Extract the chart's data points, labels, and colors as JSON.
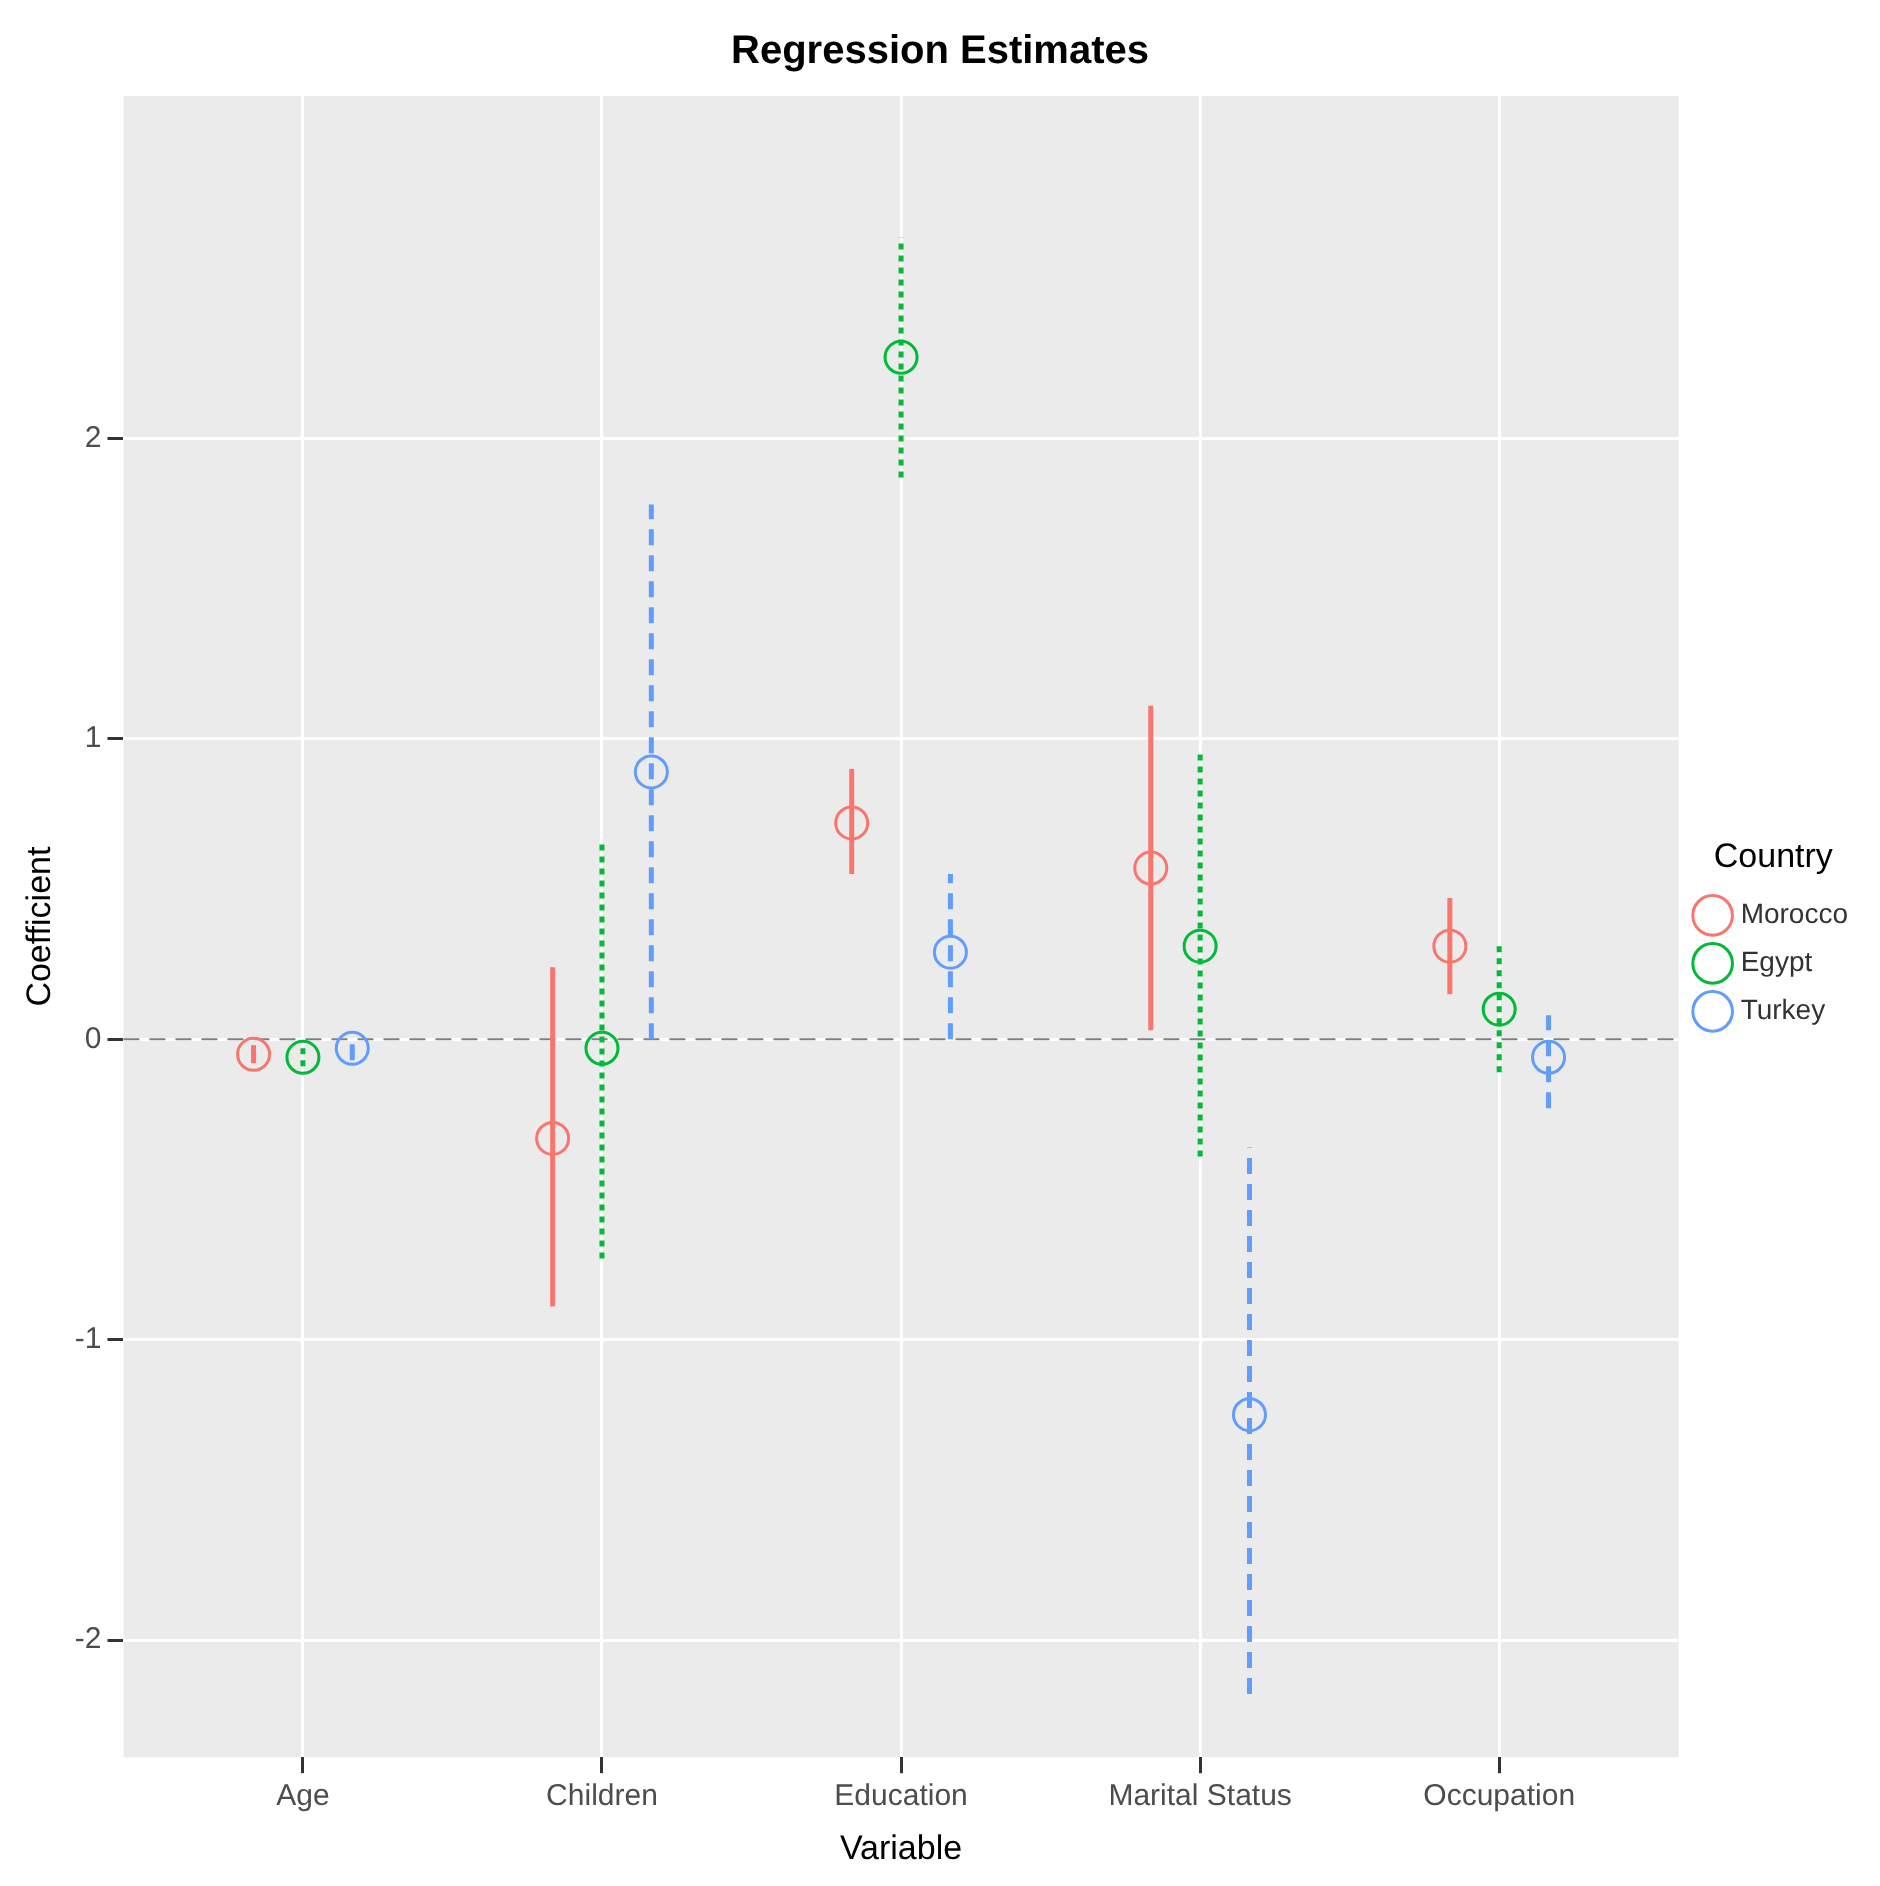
{
  "chart_data": {
    "type": "scatter",
    "title": "Regression Estimates",
    "xlabel": "Variable",
    "ylabel": "Coefficient",
    "legend_title": "Country",
    "categories": [
      "Age",
      "Children",
      "Education",
      "Marital Status",
      "Occupation"
    ],
    "series": [
      {
        "name": "Morocco",
        "color": "#f8766d",
        "line_style": "solid",
        "values": [
          -0.05,
          -0.33,
          0.72,
          0.57,
          0.31
        ],
        "errors": [
          [
            -0.08,
            -0.02
          ],
          [
            -0.89,
            0.24
          ],
          [
            0.55,
            0.9
          ],
          [
            0.03,
            1.11
          ],
          [
            0.15,
            0.47
          ]
        ]
      },
      {
        "name": "Egypt",
        "color": "#00ba38",
        "line_style": "dotted",
        "values": [
          -0.06,
          -0.03,
          2.27,
          0.31,
          0.1
        ],
        "errors": [
          [
            -0.09,
            -0.03
          ],
          [
            -0.73,
            0.65
          ],
          [
            1.87,
            2.67
          ],
          [
            -0.39,
            0.96
          ],
          [
            -0.11,
            0.31
          ]
        ]
      },
      {
        "name": "Turkey",
        "color": "#619cff",
        "line_style": "dashed",
        "values": [
          -0.03,
          0.89,
          0.29,
          -1.25,
          -0.06
        ],
        "errors": [
          [
            -0.07,
            0.01
          ],
          [
            0,
            1.78
          ],
          [
            0,
            0.55
          ],
          [
            -2.18,
            -0.36
          ],
          [
            -0.23,
            0.08
          ]
        ]
      }
    ],
    "ylim": [
      -2.39,
      3.14
    ],
    "yticks": [
      -2,
      -1,
      0,
      1,
      2
    ],
    "grid": true,
    "legend": "right",
    "marker": "circle",
    "ref_lines": [
      {
        "axis": "y",
        "value": 0,
        "color": "#7f7f7f",
        "line_style": "dashed"
      }
    ]
  }
}
